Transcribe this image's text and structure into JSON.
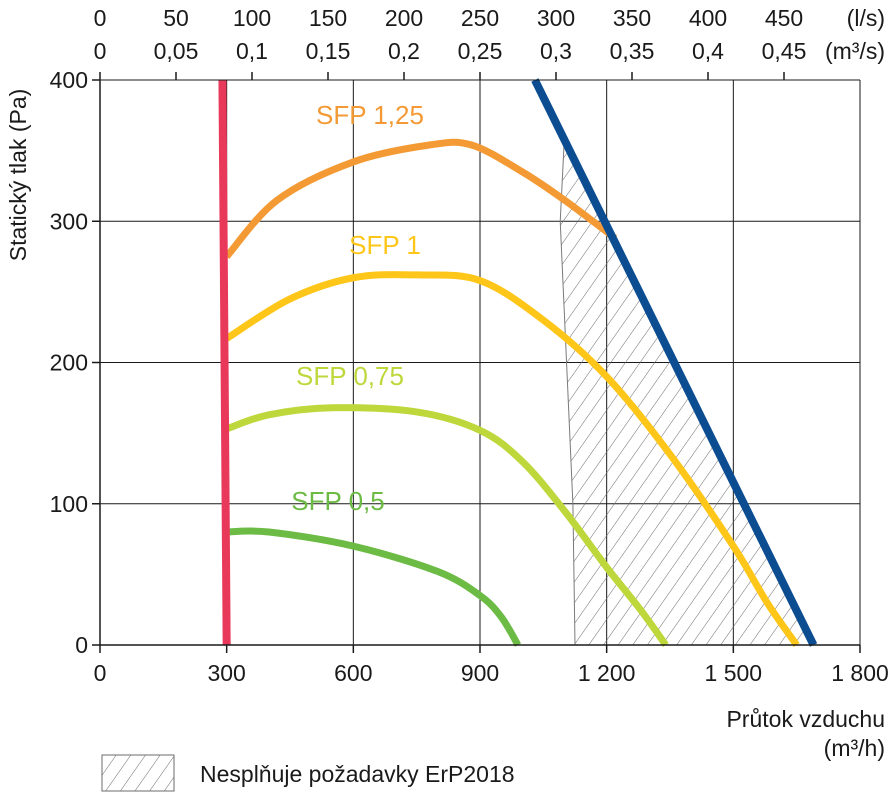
{
  "chart_data": {
    "type": "line",
    "xlabel": "Průtok vzduchu",
    "xunit": "(m³/h)",
    "ylabel": "Statický tlak (Pa)",
    "xlim": [
      0,
      1800
    ],
    "ylim": [
      0,
      400
    ],
    "x_ticks": [
      {
        "value": 0,
        "label": "0"
      },
      {
        "value": 300,
        "label": "300"
      },
      {
        "value": 600,
        "label": "600"
      },
      {
        "value": 900,
        "label": "900"
      },
      {
        "value": 1200,
        "label": "1 200"
      },
      {
        "value": 1500,
        "label": "1 500"
      },
      {
        "value": 1800,
        "label": "1 800"
      }
    ],
    "y_ticks": [
      {
        "value": 0,
        "label": "0"
      },
      {
        "value": 100,
        "label": "100"
      },
      {
        "value": 200,
        "label": "200"
      },
      {
        "value": 300,
        "label": "300"
      },
      {
        "value": 400,
        "label": "400"
      }
    ],
    "top_axis_ls": {
      "unit": "(l/s)",
      "ticks": [
        {
          "value": 0,
          "label": "0"
        },
        {
          "value": 50,
          "label": "50"
        },
        {
          "value": 100,
          "label": "100"
        },
        {
          "value": 150,
          "label": "150"
        },
        {
          "value": 200,
          "label": "200"
        },
        {
          "value": 250,
          "label": "250"
        },
        {
          "value": 300,
          "label": "300"
        },
        {
          "value": 350,
          "label": "350"
        },
        {
          "value": 400,
          "label": "400"
        },
        {
          "value": 450,
          "label": "450"
        }
      ]
    },
    "top_axis_m3s": {
      "unit": "(m³/s)",
      "ticks": [
        {
          "value": 0,
          "label": "0"
        },
        {
          "value": 0.05,
          "label": "0,05"
        },
        {
          "value": 0.1,
          "label": "0,1"
        },
        {
          "value": 0.15,
          "label": "0,15"
        },
        {
          "value": 0.2,
          "label": "0,2"
        },
        {
          "value": 0.25,
          "label": "0,25"
        },
        {
          "value": 0.3,
          "label": "0,3"
        },
        {
          "value": 0.35,
          "label": "0,35"
        },
        {
          "value": 0.4,
          "label": "0,4"
        },
        {
          "value": 0.45,
          "label": "0,45"
        }
      ]
    },
    "grid": true,
    "series": [
      {
        "name": "SFP 1,25",
        "color": "#f39a35",
        "points": [
          [
            300,
            275
          ],
          [
            420,
            315
          ],
          [
            600,
            342
          ],
          [
            780,
            354
          ],
          [
            880,
            354
          ],
          [
            1000,
            335
          ],
          [
            1100,
            315
          ],
          [
            1220,
            288
          ]
        ]
      },
      {
        "name": "SFP 1",
        "color": "#ffc61a",
        "points": [
          [
            300,
            217
          ],
          [
            450,
            245
          ],
          [
            600,
            260
          ],
          [
            750,
            262
          ],
          [
            900,
            258
          ],
          [
            1050,
            230
          ],
          [
            1200,
            190
          ],
          [
            1350,
            135
          ],
          [
            1500,
            70
          ],
          [
            1580,
            30
          ],
          [
            1650,
            0
          ]
        ]
      },
      {
        "name": "SFP 0,75",
        "color": "#bed73b",
        "points": [
          [
            300,
            153
          ],
          [
            400,
            163
          ],
          [
            550,
            168
          ],
          [
            750,
            165
          ],
          [
            900,
            152
          ],
          [
            1000,
            130
          ],
          [
            1100,
            95
          ],
          [
            1200,
            55
          ],
          [
            1280,
            25
          ],
          [
            1340,
            0
          ]
        ]
      },
      {
        "name": "SFP 0,5",
        "color": "#6cbb45",
        "points": [
          [
            300,
            80
          ],
          [
            400,
            80
          ],
          [
            600,
            70
          ],
          [
            800,
            52
          ],
          [
            900,
            35
          ],
          [
            950,
            20
          ],
          [
            990,
            0
          ]
        ]
      }
    ],
    "limit_lines": [
      {
        "color": "#e8395a",
        "points": [
          [
            290,
            400
          ],
          [
            300,
            0
          ]
        ]
      },
      {
        "color": "#0c4d92",
        "points": [
          [
            1030,
            400
          ],
          [
            1690,
            0
          ]
        ]
      }
    ],
    "hatched_region": {
      "points": [
        [
          1100,
          360
        ],
        [
          1090,
          300
        ],
        [
          1120,
          100
        ],
        [
          1125,
          0
        ],
        [
          1690,
          0
        ],
        [
          1030,
          400
        ],
        [
          1210,
          290
        ],
        [
          1100,
          360
        ]
      ]
    },
    "legend": {
      "label": "Nesplňuje požadavky ErP2018",
      "position": "bottom-left"
    }
  }
}
